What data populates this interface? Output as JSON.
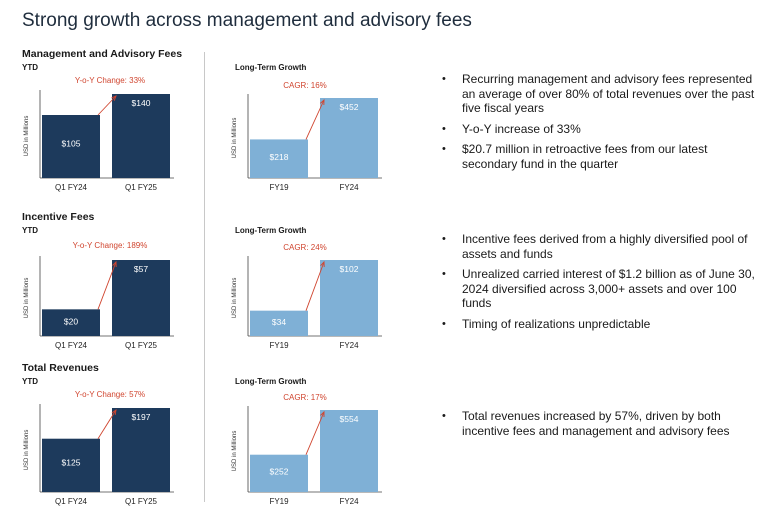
{
  "page_title": "Strong growth across management and advisory fees",
  "colors": {
    "ytd_bar": "#1d3a5c",
    "lt_bar": "#7fb0d6",
    "arrow": "#d0452f",
    "axis": "#444444"
  },
  "sections": [
    {
      "title": "Management and Advisory Fees",
      "ytd_label": "YTD",
      "ytd_change": "Y-o-Y Change: 33%",
      "lt_title": "Long-Term Growth",
      "cagr": "CAGR: 16%",
      "bullets": [
        "Recurring management and advisory fees represented an average of over 80% of total revenues over the past five fiscal years",
        "Y-o-Y increase of 33%",
        "$20.7 million in retroactive fees from our latest secondary fund in the quarter"
      ]
    },
    {
      "title": "Incentive Fees",
      "ytd_label": "YTD",
      "ytd_change": "Y-o-Y Change: 189%",
      "lt_title": "Long-Term Growth",
      "cagr": "CAGR: 24%",
      "bullets": [
        "Incentive fees derived from a highly diversified pool of assets and funds",
        "Unrealized carried interest of $1.2 billion as of June 30, 2024 diversified across 3,000+ assets and over 100 funds",
        "Timing of realizations unpredictable"
      ]
    },
    {
      "title": "Total Revenues",
      "ytd_label": "YTD",
      "ytd_change": "Y-o-Y Change: 57%",
      "lt_title": "Long-Term Growth",
      "cagr": "CAGR: 17%",
      "bullets": [
        "Total revenues increased by 57%, driven by both incentive fees and management and advisory fees"
      ]
    }
  ],
  "chart_data": [
    {
      "type": "bar",
      "title": "Management and Advisory Fees",
      "subtitle": "YTD",
      "ylabel": "USD in Millions",
      "categories": [
        "Q1 FY24",
        "Q1 FY25"
      ],
      "values": [
        105,
        140
      ],
      "value_labels": [
        "$105",
        "$140"
      ],
      "annotation": "Y-o-Y Change: 33%"
    },
    {
      "type": "bar",
      "title": "Long-Term Growth",
      "ylabel": "USD in Millions",
      "categories": [
        "FY19",
        "FY24"
      ],
      "values": [
        218,
        452
      ],
      "value_labels": [
        "$218",
        "$452"
      ],
      "annotation": "CAGR: 16%"
    },
    {
      "type": "bar",
      "title": "Incentive Fees",
      "subtitle": "YTD",
      "ylabel": "USD in Millions",
      "categories": [
        "Q1 FY24",
        "Q1 FY25"
      ],
      "values": [
        20,
        57
      ],
      "value_labels": [
        "$20",
        "$57"
      ],
      "annotation": "Y-o-Y Change: 189%"
    },
    {
      "type": "bar",
      "title": "Long-Term Growth",
      "ylabel": "USD in Millions",
      "categories": [
        "FY19",
        "FY24"
      ],
      "values": [
        34,
        102
      ],
      "value_labels": [
        "$34",
        "$102"
      ],
      "annotation": "CAGR: 24%"
    },
    {
      "type": "bar",
      "title": "Total Revenues",
      "subtitle": "YTD",
      "ylabel": "USD in Millions",
      "categories": [
        "Q1 FY24",
        "Q1 FY25"
      ],
      "values": [
        125,
        197
      ],
      "value_labels": [
        "$125",
        "$197"
      ],
      "annotation": "Y-o-Y Change: 57%"
    },
    {
      "type": "bar",
      "title": "Long-Term Growth",
      "ylabel": "USD in Millions",
      "categories": [
        "FY19",
        "FY24"
      ],
      "values": [
        252,
        554
      ],
      "value_labels": [
        "$252",
        "$554"
      ],
      "annotation": "CAGR: 17%"
    }
  ]
}
